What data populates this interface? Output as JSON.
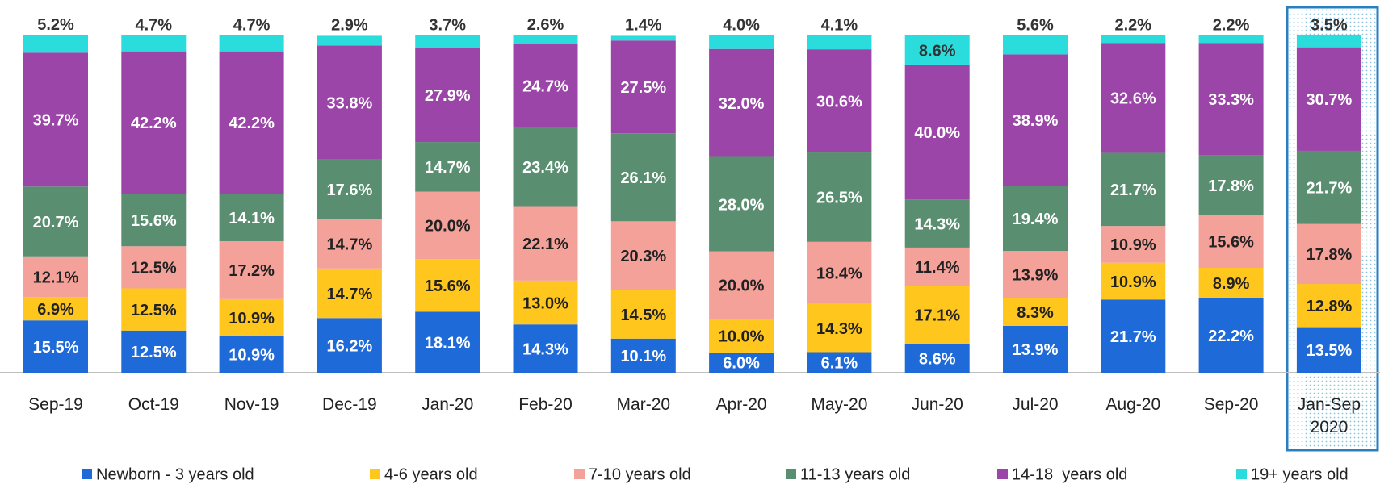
{
  "chart_data": {
    "type": "stacked_bar",
    "categories": [
      "Sep-19",
      "Oct-19",
      "Nov-19",
      "Dec-19",
      "Jan-20",
      "Feb-20",
      "Mar-20",
      "Apr-20",
      "May-20",
      "Jun-20",
      "Jul-20",
      "Aug-20",
      "Sep-20",
      "Jan-Sep 2020"
    ],
    "ylim": [
      0,
      100
    ],
    "series": [
      {
        "name": "Newborn - 3 years old",
        "color": "#1f6ad9",
        "values": [
          15.5,
          12.5,
          10.9,
          16.2,
          18.1,
          14.3,
          10.1,
          6.0,
          6.1,
          8.6,
          13.9,
          21.7,
          22.2,
          13.5
        ],
        "value_labels": [
          "15.5%",
          "12.5%",
          "10.9%",
          "16.2%",
          "18.1%",
          "14.3%",
          "10.1%",
          "6.0%",
          "6.1%",
          "8.6%",
          "13.9%",
          "21.7%",
          "22.2%",
          "13.5%"
        ]
      },
      {
        "name": "4-6 years old",
        "color": "#ffc61e",
        "values": [
          6.9,
          12.5,
          10.9,
          14.7,
          15.6,
          13.0,
          14.5,
          10.0,
          14.3,
          17.1,
          8.3,
          10.9,
          8.9,
          12.8
        ],
        "value_labels": [
          "6.9%",
          "12.5%",
          "10.9%",
          "14.7%",
          "15.6%",
          "13.0%",
          "14.5%",
          "10.0%",
          "14.3%",
          "17.1%",
          "8.3%",
          "10.9%",
          "8.9%",
          "12.8%"
        ]
      },
      {
        "name": "7-10 years old",
        "color": "#f4a19a",
        "values": [
          12.1,
          12.5,
          17.2,
          14.7,
          20.0,
          22.1,
          20.3,
          20.0,
          18.4,
          11.4,
          13.9,
          10.9,
          15.6,
          17.8
        ],
        "value_labels": [
          "12.1%",
          "12.5%",
          "17.2%",
          "14.7%",
          "20.0%",
          "22.1%",
          "20.3%",
          "20.0%",
          "18.4%",
          "11.4%",
          "13.9%",
          "10.9%",
          "15.6%",
          "17.8%"
        ]
      },
      {
        "name": "11-13 years old",
        "color": "#5a8e70",
        "values": [
          20.7,
          15.6,
          14.1,
          17.6,
          14.7,
          23.4,
          26.1,
          28.0,
          26.5,
          14.3,
          19.4,
          21.7,
          17.8,
          21.7
        ],
        "value_labels": [
          "20.7%",
          "15.6%",
          "14.1%",
          "17.6%",
          "14.7%",
          "23.4%",
          "26.1%",
          "28.0%",
          "26.5%",
          "14.3%",
          "19.4%",
          "21.7%",
          "17.8%",
          "21.7%"
        ]
      },
      {
        "name": "14-18  years old",
        "color": "#9b45a8",
        "values": [
          39.7,
          42.2,
          42.2,
          33.8,
          27.9,
          24.7,
          27.5,
          32.0,
          30.6,
          40.0,
          38.9,
          32.6,
          33.3,
          30.7
        ],
        "value_labels": [
          "39.7%",
          "42.2%",
          "42.2%",
          "33.8%",
          "27.9%",
          "24.7%",
          "27.5%",
          "32.0%",
          "30.6%",
          "40.0%",
          "38.9%",
          "32.6%",
          "33.3%",
          "30.7%"
        ]
      },
      {
        "name": "19+ years old",
        "color": "#2bdcdc",
        "values": [
          5.2,
          4.7,
          4.7,
          2.9,
          3.7,
          2.6,
          1.4,
          4.0,
          4.1,
          8.6,
          5.6,
          2.2,
          2.2,
          3.5
        ],
        "value_labels": [
          "5.2%",
          "4.7%",
          "4.7%",
          "2.9%",
          "3.7%",
          "2.6%",
          "1.4%",
          "4.0%",
          "4.1%",
          "8.6%",
          "5.6%",
          "2.2%",
          "2.2%",
          "3.5%"
        ]
      }
    ]
  }
}
